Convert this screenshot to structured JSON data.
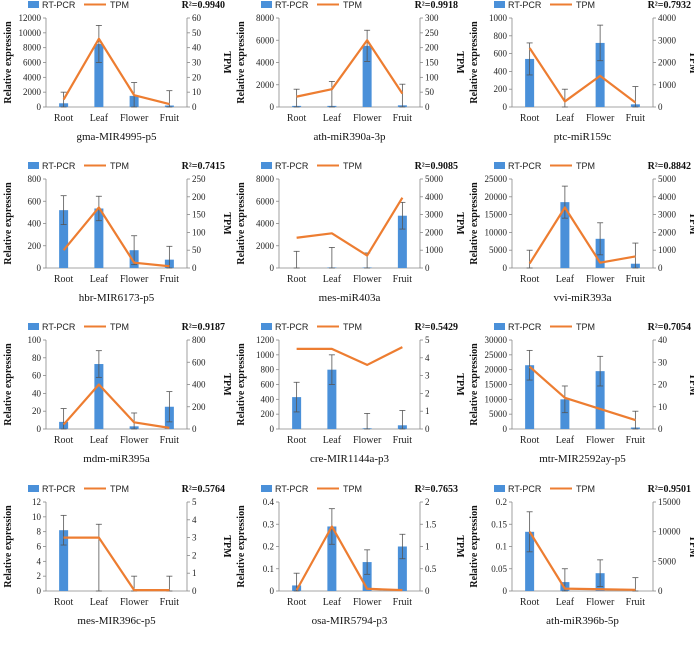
{
  "legend": {
    "bar_label": "RT-PCR",
    "line_label": "TPM"
  },
  "axis_titles": {
    "left": "Relative expression",
    "right": "TPM"
  },
  "colors": {
    "bar": "#4a90d9",
    "line": "#ed7d31"
  },
  "chart_data": [
    {
      "type": "bar",
      "name": "gma-MIR4995-p5",
      "r2": "R²=0.9940",
      "categories": [
        "Root",
        "Leaf",
        "Flower",
        "Fruit"
      ],
      "series": [
        {
          "name": "RT-PCR",
          "axis": "left",
          "values": [
            500,
            8500,
            1500,
            200
          ],
          "errors": [
            1500,
            2500,
            1800,
            2000
          ]
        },
        {
          "name": "TPM",
          "axis": "right",
          "values": [
            5,
            46,
            8,
            2
          ]
        }
      ],
      "ylim_left": [
        0,
        12000
      ],
      "yticks_left": [
        0,
        2000,
        4000,
        6000,
        8000,
        10000,
        12000
      ],
      "ylim_right": [
        0,
        60
      ],
      "yticks_right": [
        0,
        10,
        20,
        30,
        40,
        50,
        60
      ]
    },
    {
      "type": "bar",
      "name": "ath-miR390a-3p",
      "r2": "R²=0.9918",
      "categories": [
        "Root",
        "Leaf",
        "Flower",
        "Fruit"
      ],
      "series": [
        {
          "name": "RT-PCR",
          "axis": "left",
          "values": [
            100,
            100,
            5500,
            150
          ],
          "errors": [
            1500,
            2200,
            1400,
            1900
          ]
        },
        {
          "name": "TPM",
          "axis": "right",
          "values": [
            35,
            60,
            225,
            45
          ]
        }
      ],
      "ylim_left": [
        0,
        8000
      ],
      "yticks_left": [
        0,
        2000,
        4000,
        6000,
        8000
      ],
      "ylim_right": [
        0,
        300
      ],
      "yticks_right": [
        0,
        50,
        100,
        150,
        200,
        250,
        300
      ]
    },
    {
      "type": "bar",
      "name": "ptc-miR159c",
      "r2": "R²=0.7932",
      "categories": [
        "Root",
        "Leaf",
        "Flower",
        "Fruit"
      ],
      "series": [
        {
          "name": "RT-PCR",
          "axis": "left",
          "values": [
            540,
            0,
            720,
            30
          ],
          "errors": [
            180,
            200,
            200,
            200
          ]
        },
        {
          "name": "TPM",
          "axis": "right",
          "values": [
            2650,
            250,
            1400,
            200
          ]
        }
      ],
      "ylim_left": [
        0,
        1000
      ],
      "yticks_left": [
        0,
        200,
        400,
        600,
        800,
        1000
      ],
      "ylim_right": [
        0,
        4000
      ],
      "yticks_right": [
        0,
        1000,
        2000,
        3000,
        4000
      ]
    },
    {
      "type": "bar",
      "name": "hbr-MIR6173-p5",
      "r2": "R²=0.7415",
      "categories": [
        "Root",
        "Leaf",
        "Flower",
        "Fruit"
      ],
      "series": [
        {
          "name": "RT-PCR",
          "axis": "left",
          "values": [
            520,
            535,
            160,
            75
          ],
          "errors": [
            130,
            110,
            130,
            120
          ]
        },
        {
          "name": "TPM",
          "axis": "right",
          "values": [
            50,
            170,
            15,
            5
          ]
        }
      ],
      "ylim_left": [
        0,
        800
      ],
      "yticks_left": [
        0,
        200,
        400,
        600,
        800
      ],
      "ylim_right": [
        0,
        250
      ],
      "yticks_right": [
        0,
        50,
        100,
        150,
        200,
        250
      ]
    },
    {
      "type": "bar",
      "name": "mes-miR403a",
      "r2": "R²=0.9085",
      "categories": [
        "Root",
        "Leaf",
        "Flower",
        "Fruit"
      ],
      "series": [
        {
          "name": "RT-PCR",
          "axis": "left",
          "values": [
            0,
            50,
            50,
            4700
          ],
          "errors": [
            1500,
            1800,
            1300,
            1200
          ]
        },
        {
          "name": "TPM",
          "axis": "right",
          "values": [
            1700,
            1950,
            700,
            3950
          ]
        }
      ],
      "ylim_left": [
        0,
        8000
      ],
      "yticks_left": [
        0,
        2000,
        4000,
        6000,
        8000
      ],
      "ylim_right": [
        0,
        5000
      ],
      "yticks_right": [
        0,
        1000,
        2000,
        3000,
        4000,
        5000
      ]
    },
    {
      "type": "bar",
      "name": "vvi-miR393a",
      "r2": "R²=0.8842",
      "categories": [
        "Root",
        "Leaf",
        "Flower",
        "Fruit"
      ],
      "series": [
        {
          "name": "RT-PCR",
          "axis": "left",
          "values": [
            0,
            18500,
            8200,
            1200
          ],
          "errors": [
            5000,
            4500,
            4500,
            5800
          ]
        },
        {
          "name": "TPM",
          "axis": "right",
          "values": [
            250,
            3400,
            300,
            650
          ]
        }
      ],
      "ylim_left": [
        0,
        25000
      ],
      "yticks_left": [
        0,
        5000,
        10000,
        15000,
        20000,
        25000
      ],
      "ylim_right": [
        0,
        5000
      ],
      "yticks_right": [
        0,
        1000,
        2000,
        3000,
        4000,
        5000
      ]
    },
    {
      "type": "bar",
      "name": "mdm-miR395a",
      "r2": "R²=0.9187",
      "categories": [
        "Root",
        "Leaf",
        "Flower",
        "Fruit"
      ],
      "series": [
        {
          "name": "RT-PCR",
          "axis": "left",
          "values": [
            8,
            73,
            3,
            25
          ],
          "errors": [
            15,
            15,
            15,
            17
          ]
        },
        {
          "name": "TPM",
          "axis": "right",
          "values": [
            40,
            400,
            60,
            10
          ]
        }
      ],
      "ylim_left": [
        0,
        100
      ],
      "yticks_left": [
        0,
        20,
        40,
        60,
        80,
        100
      ],
      "ylim_right": [
        0,
        800
      ],
      "yticks_right": [
        0,
        200,
        400,
        600,
        800
      ]
    },
    {
      "type": "bar",
      "name": "cre-MIR1144a-p3",
      "r2": "R²=0.5429",
      "categories": [
        "Root",
        "Leaf",
        "Flower",
        "Fruit"
      ],
      "series": [
        {
          "name": "RT-PCR",
          "axis": "left",
          "values": [
            430,
            800,
            10,
            50
          ],
          "errors": [
            200,
            200,
            200,
            200
          ]
        },
        {
          "name": "TPM",
          "axis": "right",
          "values": [
            4.5,
            4.5,
            3.6,
            4.6
          ]
        }
      ],
      "ylim_left": [
        0,
        1200
      ],
      "yticks_left": [
        0,
        200,
        400,
        600,
        800,
        1000,
        1200
      ],
      "ylim_right": [
        0,
        5
      ],
      "yticks_right": [
        0,
        1,
        2,
        3,
        4,
        5
      ]
    },
    {
      "type": "bar",
      "name": "mtr-MIR2592ay-p5",
      "r2": "R²=0.7054",
      "categories": [
        "Root",
        "Leaf",
        "Flower",
        "Fruit"
      ],
      "series": [
        {
          "name": "RT-PCR",
          "axis": "left",
          "values": [
            21500,
            10000,
            19500,
            500
          ],
          "errors": [
            5000,
            4500,
            5000,
            5500
          ]
        },
        {
          "name": "TPM",
          "axis": "right",
          "values": [
            28,
            14,
            9,
            4
          ]
        }
      ],
      "ylim_left": [
        0,
        30000
      ],
      "yticks_left": [
        0,
        5000,
        10000,
        15000,
        20000,
        25000,
        30000
      ],
      "ylim_right": [
        0,
        40
      ],
      "yticks_right": [
        0,
        10,
        20,
        30,
        40
      ]
    },
    {
      "type": "bar",
      "name": "mes-MIR396c-p5",
      "r2": "R²=0.5764",
      "categories": [
        "Root",
        "Leaf",
        "Flower",
        "Fruit"
      ],
      "series": [
        {
          "name": "RT-PCR",
          "axis": "left",
          "values": [
            8.2,
            0,
            0,
            0
          ],
          "errors": [
            2,
            9,
            2,
            2
          ]
        },
        {
          "name": "TPM",
          "axis": "right",
          "values": [
            3,
            3,
            0.05,
            0.05
          ]
        }
      ],
      "ylim_left": [
        0,
        12
      ],
      "yticks_left": [
        0,
        2,
        4,
        6,
        8,
        10,
        12
      ],
      "ylim_right": [
        0,
        5
      ],
      "yticks_right": [
        0,
        1,
        2,
        3,
        4,
        5
      ]
    },
    {
      "type": "bar",
      "name": "osa-MIR5794-p3",
      "r2": "R²=0.7653",
      "categories": [
        "Root",
        "Leaf",
        "Flower",
        "Fruit"
      ],
      "series": [
        {
          "name": "RT-PCR",
          "axis": "left",
          "values": [
            0.025,
            0.29,
            0.13,
            0.2
          ],
          "errors": [
            0.055,
            0.08,
            0.055,
            0.055
          ]
        },
        {
          "name": "TPM",
          "axis": "right",
          "values": [
            0.02,
            1.45,
            0.05,
            0.02
          ]
        }
      ],
      "ylim_left": [
        0,
        0.4
      ],
      "yticks_left": [
        0,
        0.1,
        0.2,
        0.3,
        0.4
      ],
      "ylim_right": [
        0,
        2
      ],
      "yticks_right": [
        0,
        0.5,
        1,
        1.5,
        2
      ]
    },
    {
      "type": "bar",
      "name": "ath-miR396b-5p",
      "r2": "R²=0.9501",
      "categories": [
        "Root",
        "Leaf",
        "Flower",
        "Fruit"
      ],
      "series": [
        {
          "name": "RT-PCR",
          "axis": "left",
          "values": [
            0.133,
            0.02,
            0.04,
            0
          ],
          "errors": [
            0.045,
            0.03,
            0.03,
            0.03
          ]
        },
        {
          "name": "TPM",
          "axis": "right",
          "values": [
            10000,
            400,
            300,
            200
          ]
        }
      ],
      "ylim_left": [
        0,
        0.2
      ],
      "yticks_left": [
        0,
        0.05,
        0.1,
        0.15,
        0.2
      ],
      "ylim_right": [
        0,
        15000
      ],
      "yticks_right": [
        0,
        5000,
        10000,
        15000
      ]
    }
  ]
}
